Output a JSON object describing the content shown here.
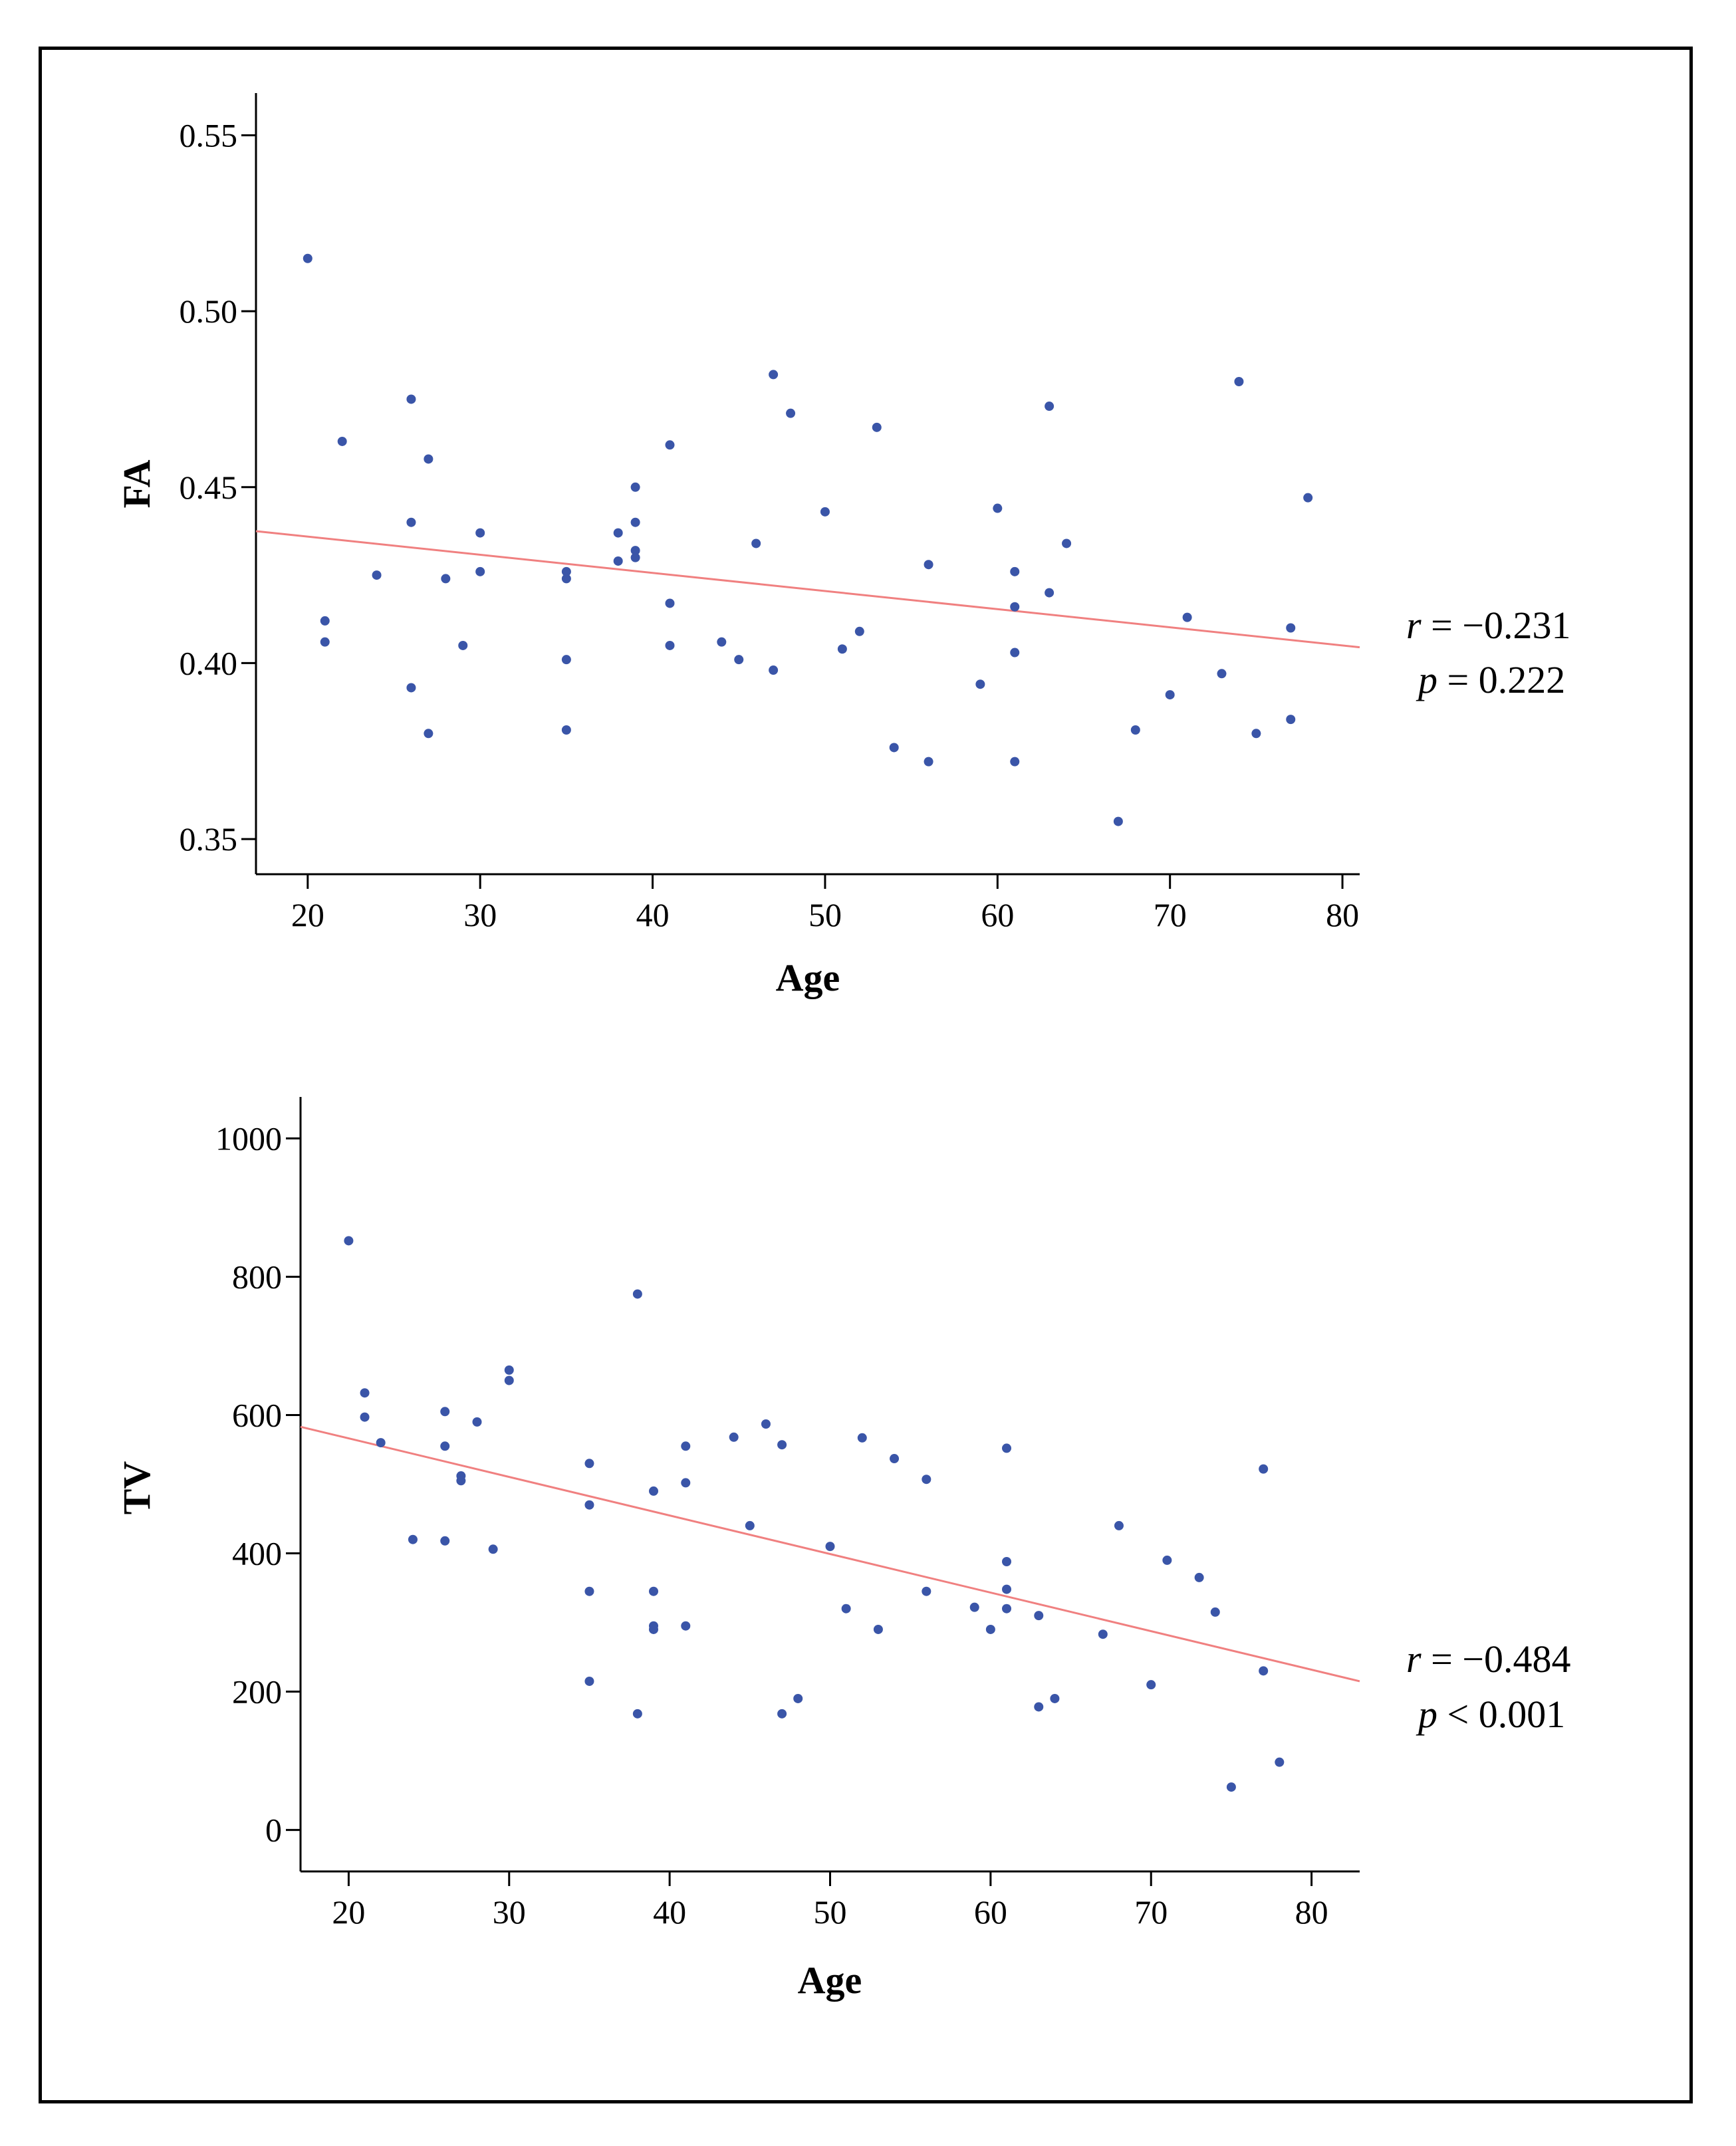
{
  "chart_data": [
    {
      "type": "scatter",
      "title": "",
      "xlabel": "Age",
      "ylabel": "FA",
      "xlim": [
        17,
        81
      ],
      "ylim": [
        0.34,
        0.562
      ],
      "xticks": [
        "20",
        "30",
        "40",
        "50",
        "60",
        "70",
        "80"
      ],
      "yticks": [
        "0.35",
        "0.40",
        "0.45",
        "0.50",
        "0.55"
      ],
      "colors": {
        "point": "#3a55a8",
        "fit": "#f08080"
      },
      "fit_line": {
        "x": [
          17,
          81
        ],
        "y": [
          0.4375,
          0.4045
        ]
      },
      "stats": {
        "r": "r",
        "r_value": " = −0.231",
        "p": "p",
        "p_value": " = 0.222"
      },
      "points": {
        "x": [
          20,
          21,
          21,
          22,
          24,
          26,
          26,
          26,
          27,
          27,
          28,
          29,
          30,
          30,
          35,
          35,
          35,
          35,
          38,
          38,
          39,
          39,
          39,
          39,
          41,
          41,
          41,
          44,
          45,
          46,
          47,
          47,
          48,
          50,
          51,
          52,
          53,
          54,
          56,
          56,
          59,
          60,
          61,
          61,
          61,
          61,
          63,
          63,
          64,
          67,
          68,
          70,
          71,
          73,
          74,
          75,
          77,
          77,
          78
        ],
        "y": [
          0.515,
          0.412,
          0.406,
          0.463,
          0.425,
          0.475,
          0.44,
          0.393,
          0.458,
          0.38,
          0.424,
          0.405,
          0.437,
          0.426,
          0.426,
          0.424,
          0.401,
          0.381,
          0.437,
          0.429,
          0.45,
          0.44,
          0.432,
          0.43,
          0.462,
          0.417,
          0.405,
          0.406,
          0.401,
          0.434,
          0.482,
          0.398,
          0.471,
          0.443,
          0.404,
          0.409,
          0.467,
          0.376,
          0.428,
          0.372,
          0.394,
          0.444,
          0.426,
          0.416,
          0.403,
          0.372,
          0.473,
          0.42,
          0.434,
          0.355,
          0.381,
          0.391,
          0.413,
          0.397,
          0.48,
          0.38,
          0.41,
          0.384,
          0.447
        ]
      }
    },
    {
      "type": "scatter",
      "title": "",
      "xlabel": "Age",
      "ylabel": "TV",
      "xlim": [
        17,
        83
      ],
      "ylim": [
        -60,
        1060
      ],
      "xticks": [
        "20",
        "30",
        "40",
        "50",
        "60",
        "70",
        "80"
      ],
      "yticks": [
        "0",
        "200",
        "400",
        "600",
        "800",
        "1000"
      ],
      "colors": {
        "point": "#3a55a8",
        "fit": "#f08080"
      },
      "fit_line": {
        "x": [
          17,
          83
        ],
        "y": [
          583,
          215
        ]
      },
      "stats": {
        "r": "r",
        "r_value": " = −0.484",
        "p": "p",
        "p_value": " < 0.001"
      },
      "points": {
        "x": [
          20,
          21,
          21,
          22,
          24,
          26,
          26,
          26,
          27,
          27,
          28,
          29,
          30,
          30,
          35,
          35,
          35,
          35,
          38,
          38,
          39,
          39,
          39,
          39,
          41,
          41,
          41,
          44,
          45,
          46,
          47,
          47,
          48,
          50,
          51,
          52,
          53,
          54,
          56,
          56,
          59,
          60,
          61,
          61,
          61,
          61,
          63,
          63,
          64,
          67,
          68,
          70,
          71,
          73,
          74,
          75,
          77,
          77,
          78
        ],
        "y": [
          852,
          632,
          597,
          560,
          420,
          605,
          555,
          418,
          512,
          505,
          590,
          406,
          665,
          650,
          530,
          470,
          345,
          215,
          775,
          168,
          490,
          345,
          295,
          290,
          555,
          502,
          295,
          568,
          440,
          587,
          557,
          168,
          190,
          410,
          320,
          567,
          290,
          537,
          345,
          507,
          322,
          290,
          552,
          388,
          348,
          320,
          310,
          178,
          190,
          283,
          440,
          210,
          390,
          365,
          315,
          62,
          522,
          230,
          98
        ]
      }
    }
  ]
}
